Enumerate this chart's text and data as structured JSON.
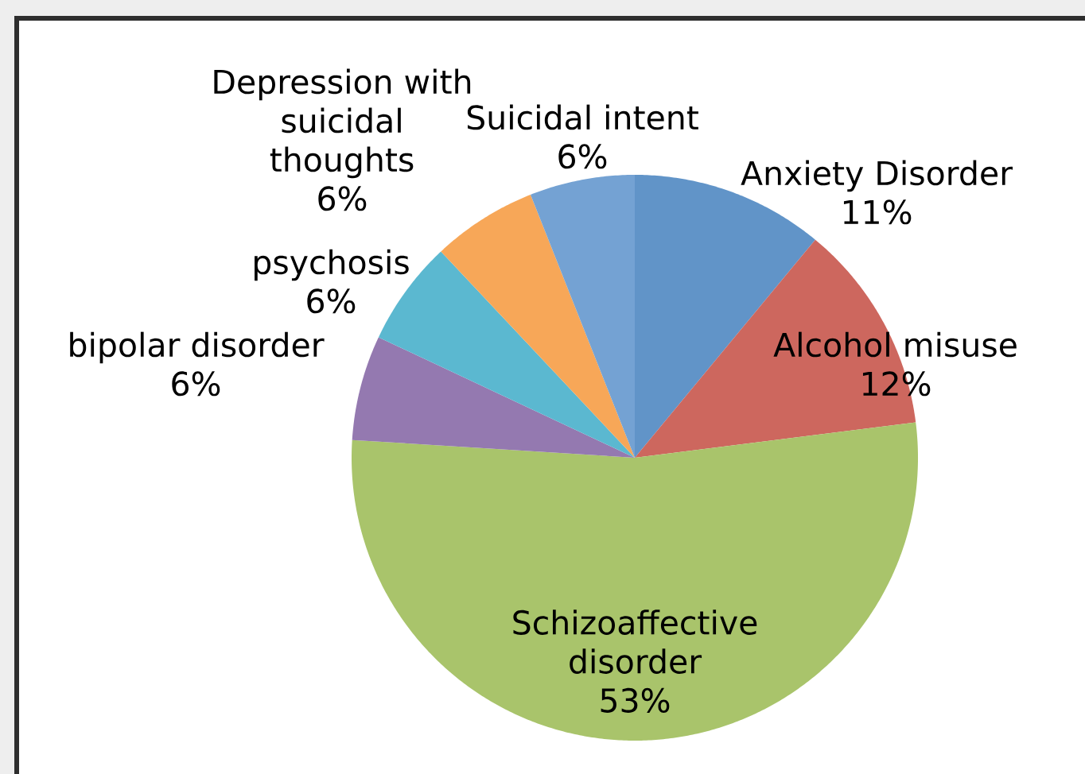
{
  "chart_data": {
    "type": "pie",
    "categories": [
      "Anxiety Disorder",
      "Alcohol misuse",
      "Schizoaffective disorder",
      "bipolar disorder",
      "psychosis",
      "Depression with suicidal thoughts",
      "Suicidal intent"
    ],
    "values": [
      11,
      12,
      53,
      6,
      6,
      6,
      6
    ],
    "value_labels": [
      "11%",
      "12%",
      "53%",
      "6%",
      "6%",
      "6%",
      "6%"
    ],
    "colors": [
      "#6194c8",
      "#cd675e",
      "#a9c46b",
      "#9479b0",
      "#5bb8d0",
      "#f7a758",
      "#74a2d3"
    ]
  }
}
